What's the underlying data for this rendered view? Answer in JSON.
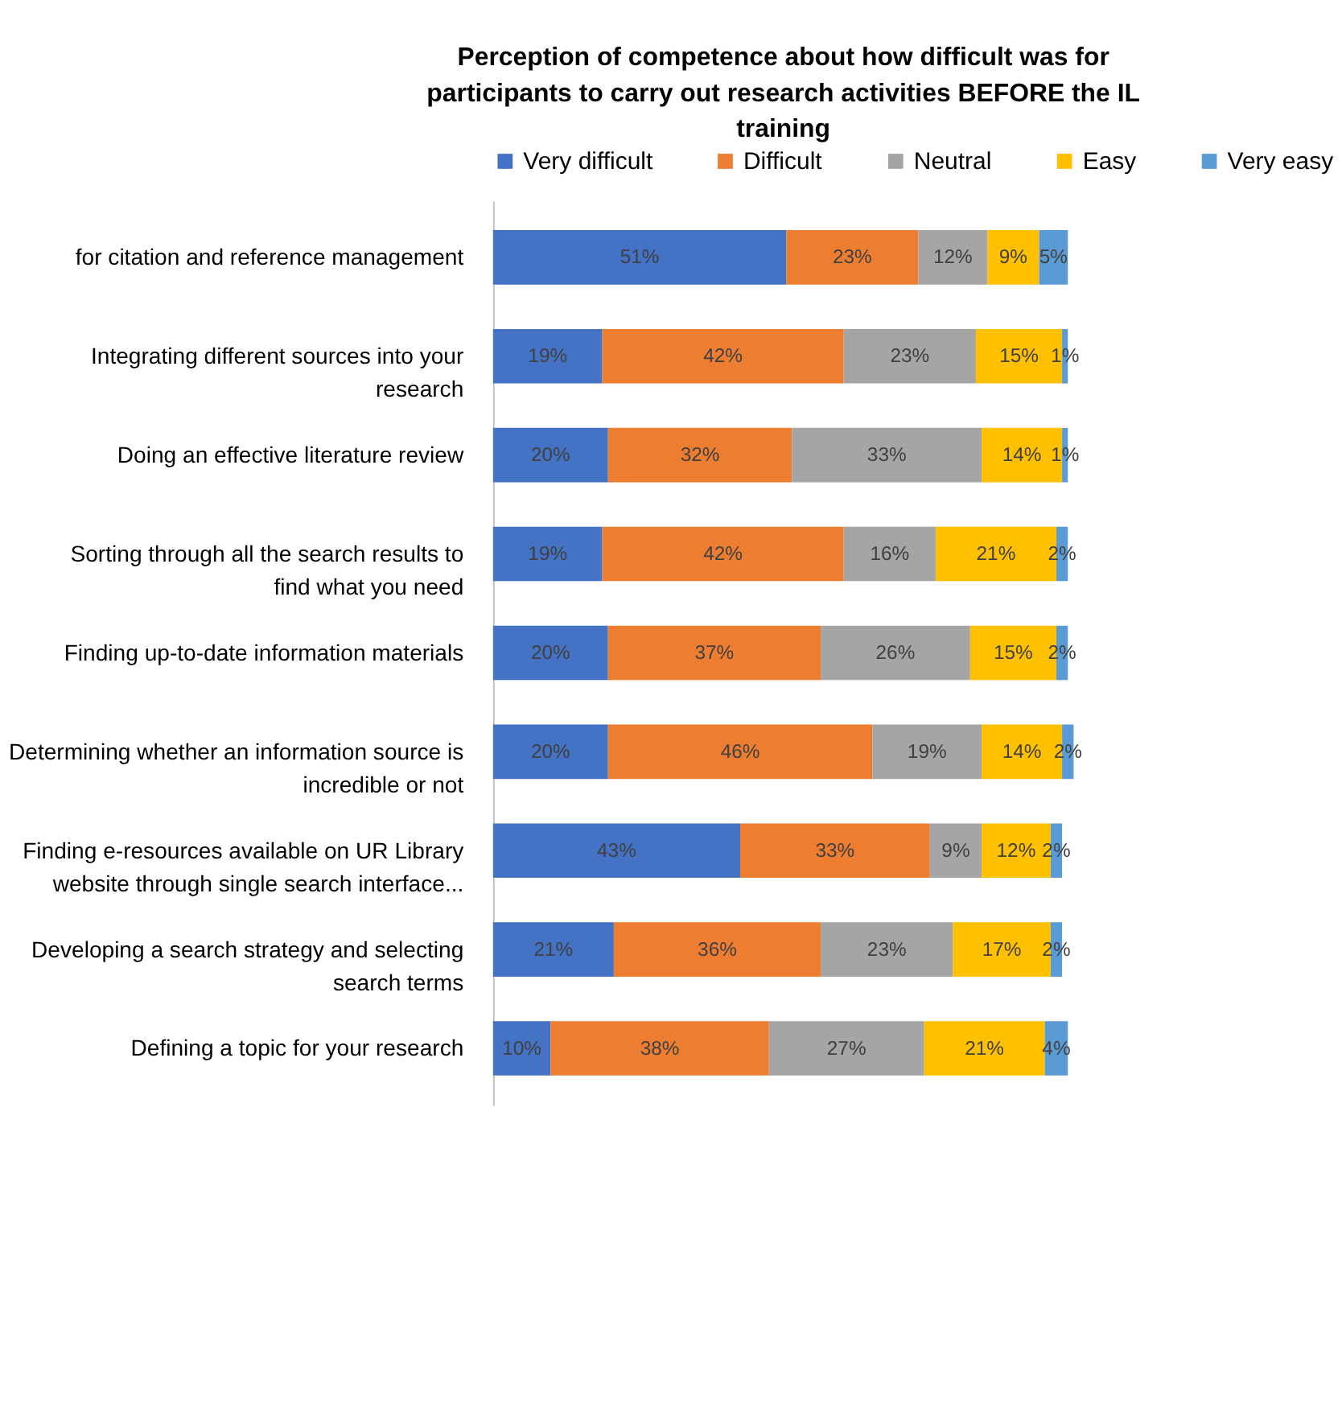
{
  "chart_data": {
    "type": "bar",
    "orientation": "horizontal",
    "stacked": true,
    "title": "Perception of competence about how difficult was for participants to carry out research activities BEFORE the IL training",
    "categories": [
      "for citation and reference management",
      "Integrating different sources into your research",
      "Doing an effective literature review",
      "Sorting through all the search results to find what you need",
      "Finding up-to-date information materials",
      "Determining whether an information source is incredible or not",
      "Finding e-resources available on UR Library website through single search interface...",
      "Developing a search strategy and selecting search terms",
      "Defining a topic for your research"
    ],
    "series": [
      {
        "name": "Very difficult",
        "color": "#4472c4",
        "values": [
          51,
          19,
          20,
          19,
          20,
          20,
          43,
          21,
          10
        ],
        "value_labels": [
          "51%",
          "19%",
          "20%",
          "19%",
          "20%",
          "20%",
          "43%",
          "21%",
          "10%"
        ]
      },
      {
        "name": "Difficult",
        "color": "#ed7d31",
        "values": [
          23,
          42,
          32,
          42,
          37,
          46,
          33,
          36,
          38
        ],
        "value_labels": [
          "23%",
          "42%",
          "32%",
          "42%",
          "37%",
          "46%",
          "33%",
          "36%",
          "38%"
        ]
      },
      {
        "name": "Neutral",
        "color": "#a5a5a5",
        "values": [
          12,
          23,
          33,
          16,
          26,
          19,
          9,
          23,
          27
        ],
        "value_labels": [
          "12%",
          "23%",
          "33%",
          "16%",
          "26%",
          "19%",
          "9%",
          "23%",
          "27%"
        ]
      },
      {
        "name": "Easy",
        "color": "#ffc000",
        "values": [
          9,
          15,
          14,
          21,
          15,
          14,
          12,
          17,
          21
        ],
        "value_labels": [
          "9%",
          "15%",
          "14%",
          "21%",
          "15%",
          "14%",
          "12%",
          "17%",
          "21%"
        ]
      },
      {
        "name": "Very easy",
        "color": "#5b9bd5",
        "values": [
          5,
          1,
          1,
          2,
          2,
          2,
          2,
          2,
          4
        ],
        "value_labels": [
          "5%",
          "1%",
          "1%",
          "2%",
          "2%",
          "2%",
          "2%",
          "2%",
          "4%"
        ]
      }
    ],
    "legend": "top",
    "grid": false
  }
}
